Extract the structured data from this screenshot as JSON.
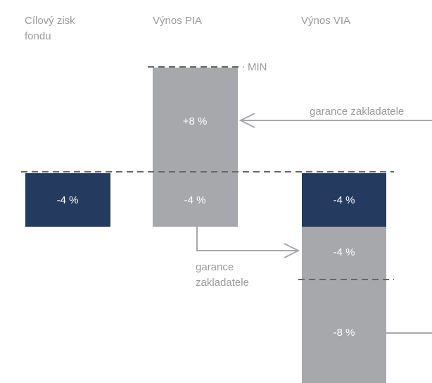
{
  "columns": [
    {
      "title": [
        "Cílový zisk",
        "fondu"
      ],
      "boxes": [
        {
          "label": "-4 %"
        }
      ]
    },
    {
      "title": [
        "Výnos PIA"
      ],
      "boxes": [
        {
          "label": "+8 %"
        },
        {
          "label": "-4 %"
        }
      ]
    },
    {
      "title": [
        "Výnos VIA"
      ],
      "boxes": [
        {
          "label": "-4 %"
        },
        {
          "label": "-4 %"
        },
        {
          "label": "-8 %"
        }
      ]
    }
  ],
  "annotations": {
    "min": "MIN",
    "guarantee_top": "garance zakladatele",
    "guarantee_bottom": [
      "garance",
      "zakladatele"
    ]
  }
}
